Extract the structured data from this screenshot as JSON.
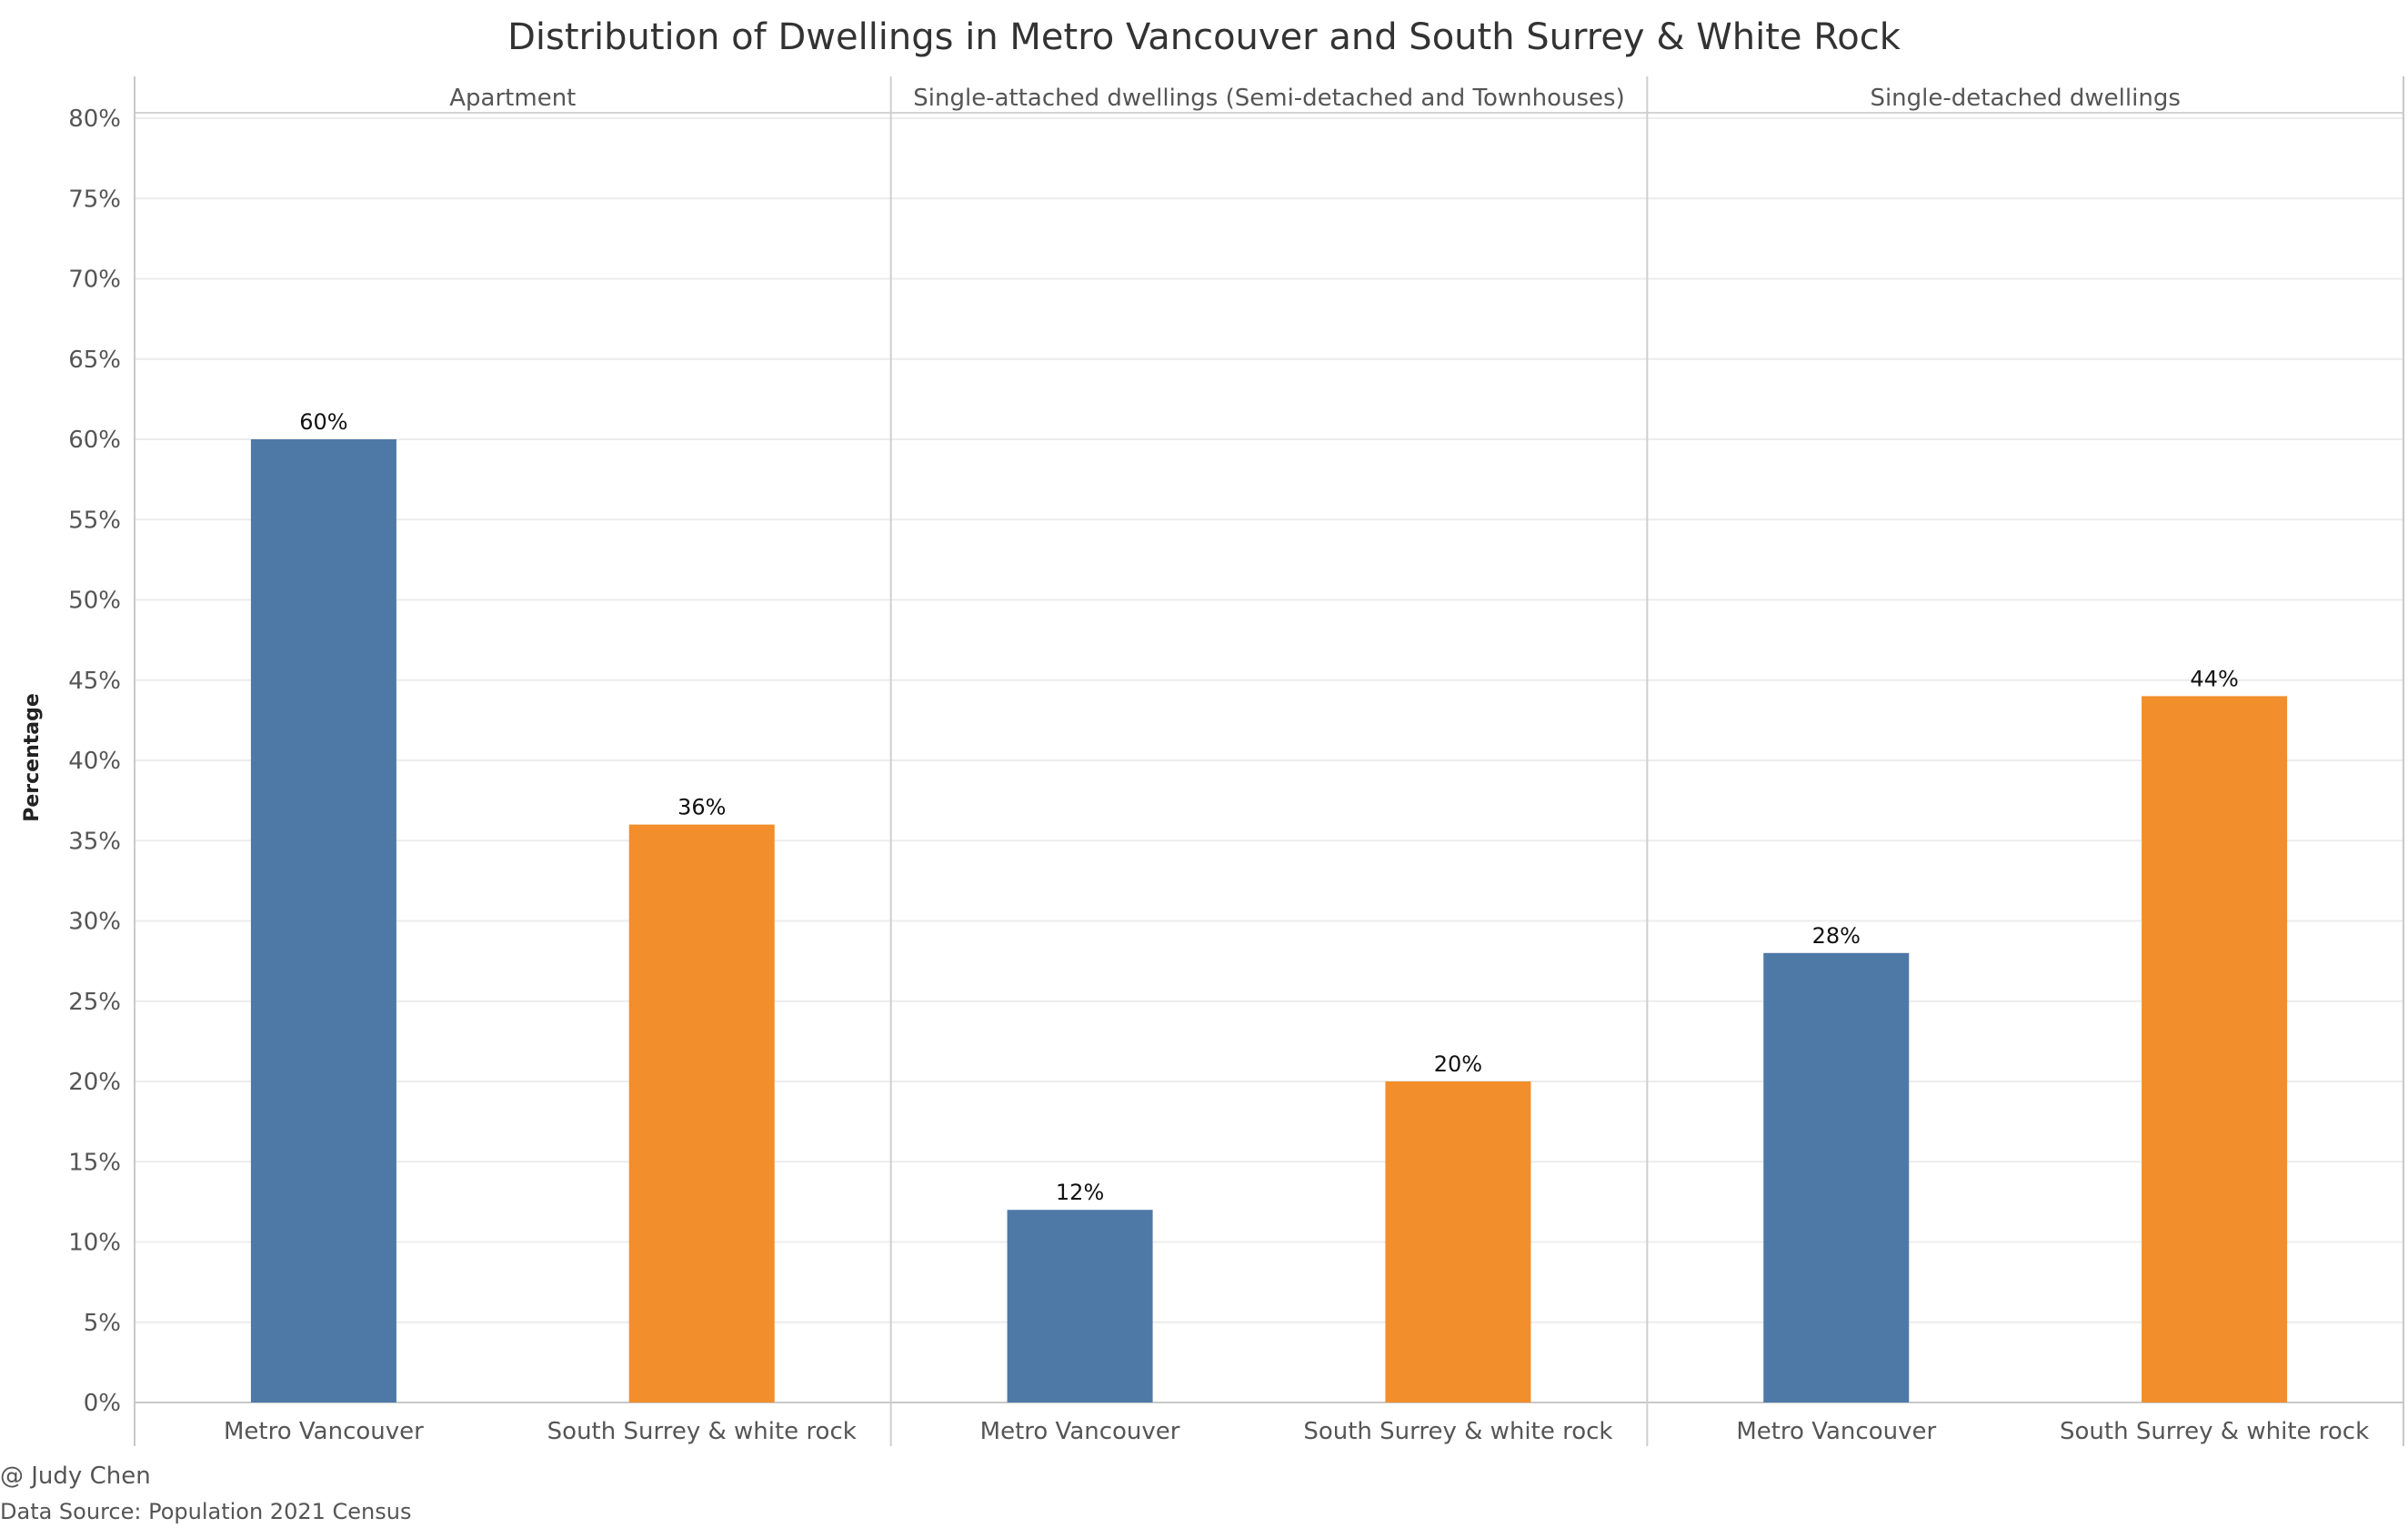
{
  "chart_data": {
    "type": "bar",
    "title": "Distribution of Dwellings in Metro Vancouver and South Surrey & White Rock",
    "ylabel": "Percentage",
    "xlabel": "",
    "ylim": [
      0,
      80
    ],
    "y_ticks": [
      {
        "value": 0,
        "label": "0%"
      },
      {
        "value": 5,
        "label": "5%"
      },
      {
        "value": 10,
        "label": "10%"
      },
      {
        "value": 15,
        "label": "15%"
      },
      {
        "value": 20,
        "label": "20%"
      },
      {
        "value": 25,
        "label": "25%"
      },
      {
        "value": 30,
        "label": "30%"
      },
      {
        "value": 35,
        "label": "35%"
      },
      {
        "value": 40,
        "label": "40%"
      },
      {
        "value": 45,
        "label": "45%"
      },
      {
        "value": 50,
        "label": "50%"
      },
      {
        "value": 55,
        "label": "55%"
      },
      {
        "value": 60,
        "label": "60%"
      },
      {
        "value": 65,
        "label": "65%"
      },
      {
        "value": 70,
        "label": "70%"
      },
      {
        "value": 75,
        "label": "75%"
      },
      {
        "value": 80,
        "label": "80%"
      }
    ],
    "grid": true,
    "legend": "none",
    "colors": {
      "Metro Vancouver": "#4e79a7",
      "South Surrey & white rock": "#f28e2b"
    },
    "panels": [
      {
        "name": "Apartment",
        "bars": [
          {
            "category": "Metro Vancouver",
            "value": 60,
            "label": "60%"
          },
          {
            "category": "South Surrey & white rock",
            "value": 36,
            "label": "36%"
          }
        ]
      },
      {
        "name": "Single-attached dwellings (Semi-detached and Townhouses)",
        "bars": [
          {
            "category": "Metro Vancouver",
            "value": 12,
            "label": "12%"
          },
          {
            "category": "South Surrey & white rock",
            "value": 20,
            "label": "20%"
          }
        ]
      },
      {
        "name": "Single-detached dwellings",
        "bars": [
          {
            "category": "Metro Vancouver",
            "value": 28,
            "label": "28%"
          },
          {
            "category": "South Surrey & white rock",
            "value": 44,
            "label": "44%"
          }
        ]
      }
    ]
  },
  "footer": {
    "credit": "@ Judy Chen",
    "source": "Data Source: Population 2021 Census"
  }
}
